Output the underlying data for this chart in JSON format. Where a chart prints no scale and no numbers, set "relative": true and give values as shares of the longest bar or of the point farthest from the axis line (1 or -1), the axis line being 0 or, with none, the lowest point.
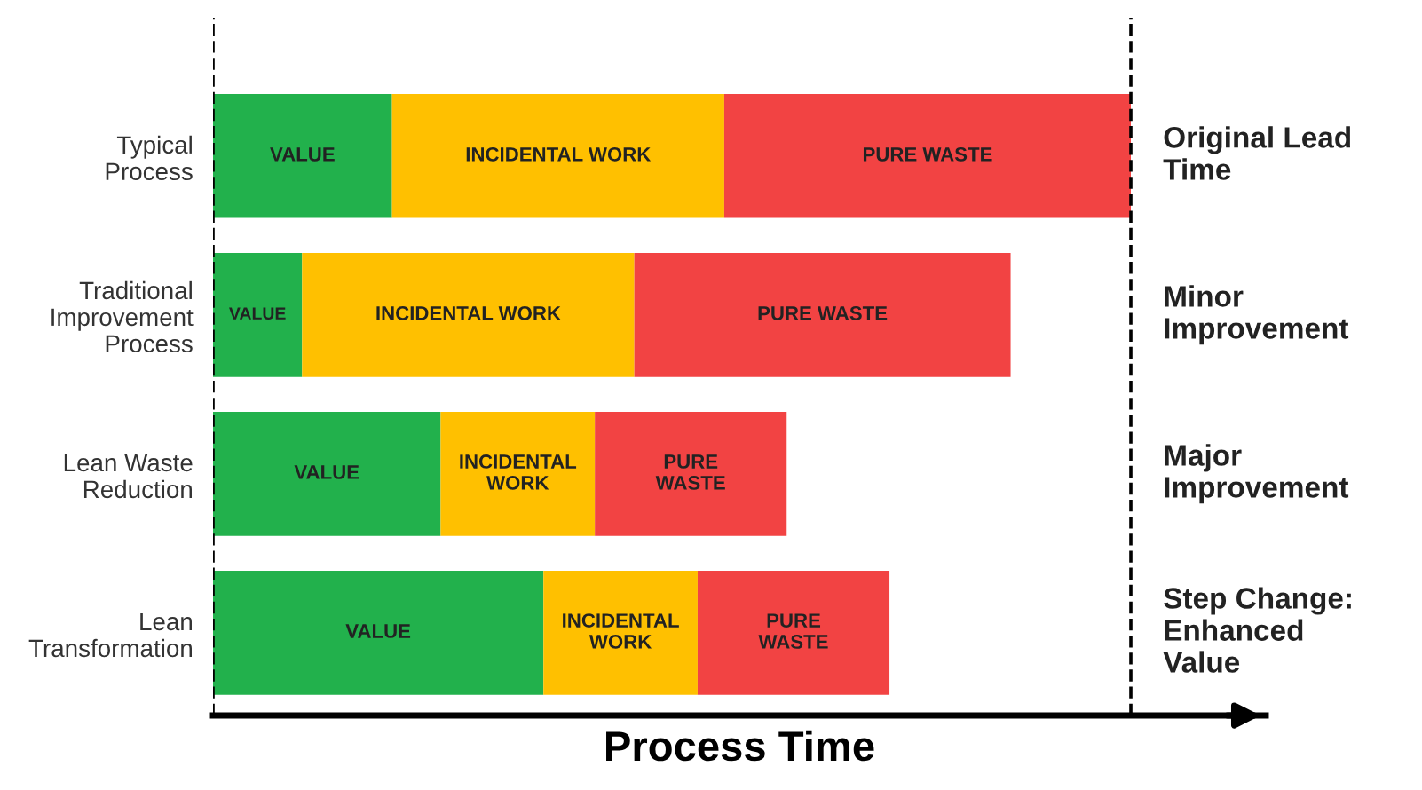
{
  "chart_data": {
    "type": "bar",
    "orientation": "horizontal",
    "stacked": true,
    "relative": true,
    "xlabel": "Process Time",
    "categories": [
      "Typical\nProcess",
      "Traditional\nImprovement\nProcess",
      "Lean Waste\nReduction",
      "Lean\nTransformation"
    ],
    "series": [
      {
        "name": "VALUE",
        "color": "#22b14c",
        "values": [
          0.195,
          0.097,
          0.248,
          0.36
        ]
      },
      {
        "name": "INCIDENTAL WORK",
        "color": "#ffc000",
        "values": [
          0.362,
          0.362,
          0.168,
          0.168
        ]
      },
      {
        "name": "PURE WASTE",
        "color": "#f24343",
        "values": [
          0.443,
          0.41,
          0.209,
          0.209
        ]
      }
    ],
    "ref_lines": [
      {
        "axis": "x",
        "value": 0,
        "line_style": "dashed",
        "color": "#000000"
      },
      {
        "axis": "x",
        "value": 1,
        "line_style": "dashed",
        "color": "#000000"
      }
    ],
    "annotations": [
      "Original Lead\nTime",
      "Minor\nImprovement",
      "Major\nImprovement",
      "Step Change:\nEnhanced\nValue"
    ],
    "legend": false
  }
}
